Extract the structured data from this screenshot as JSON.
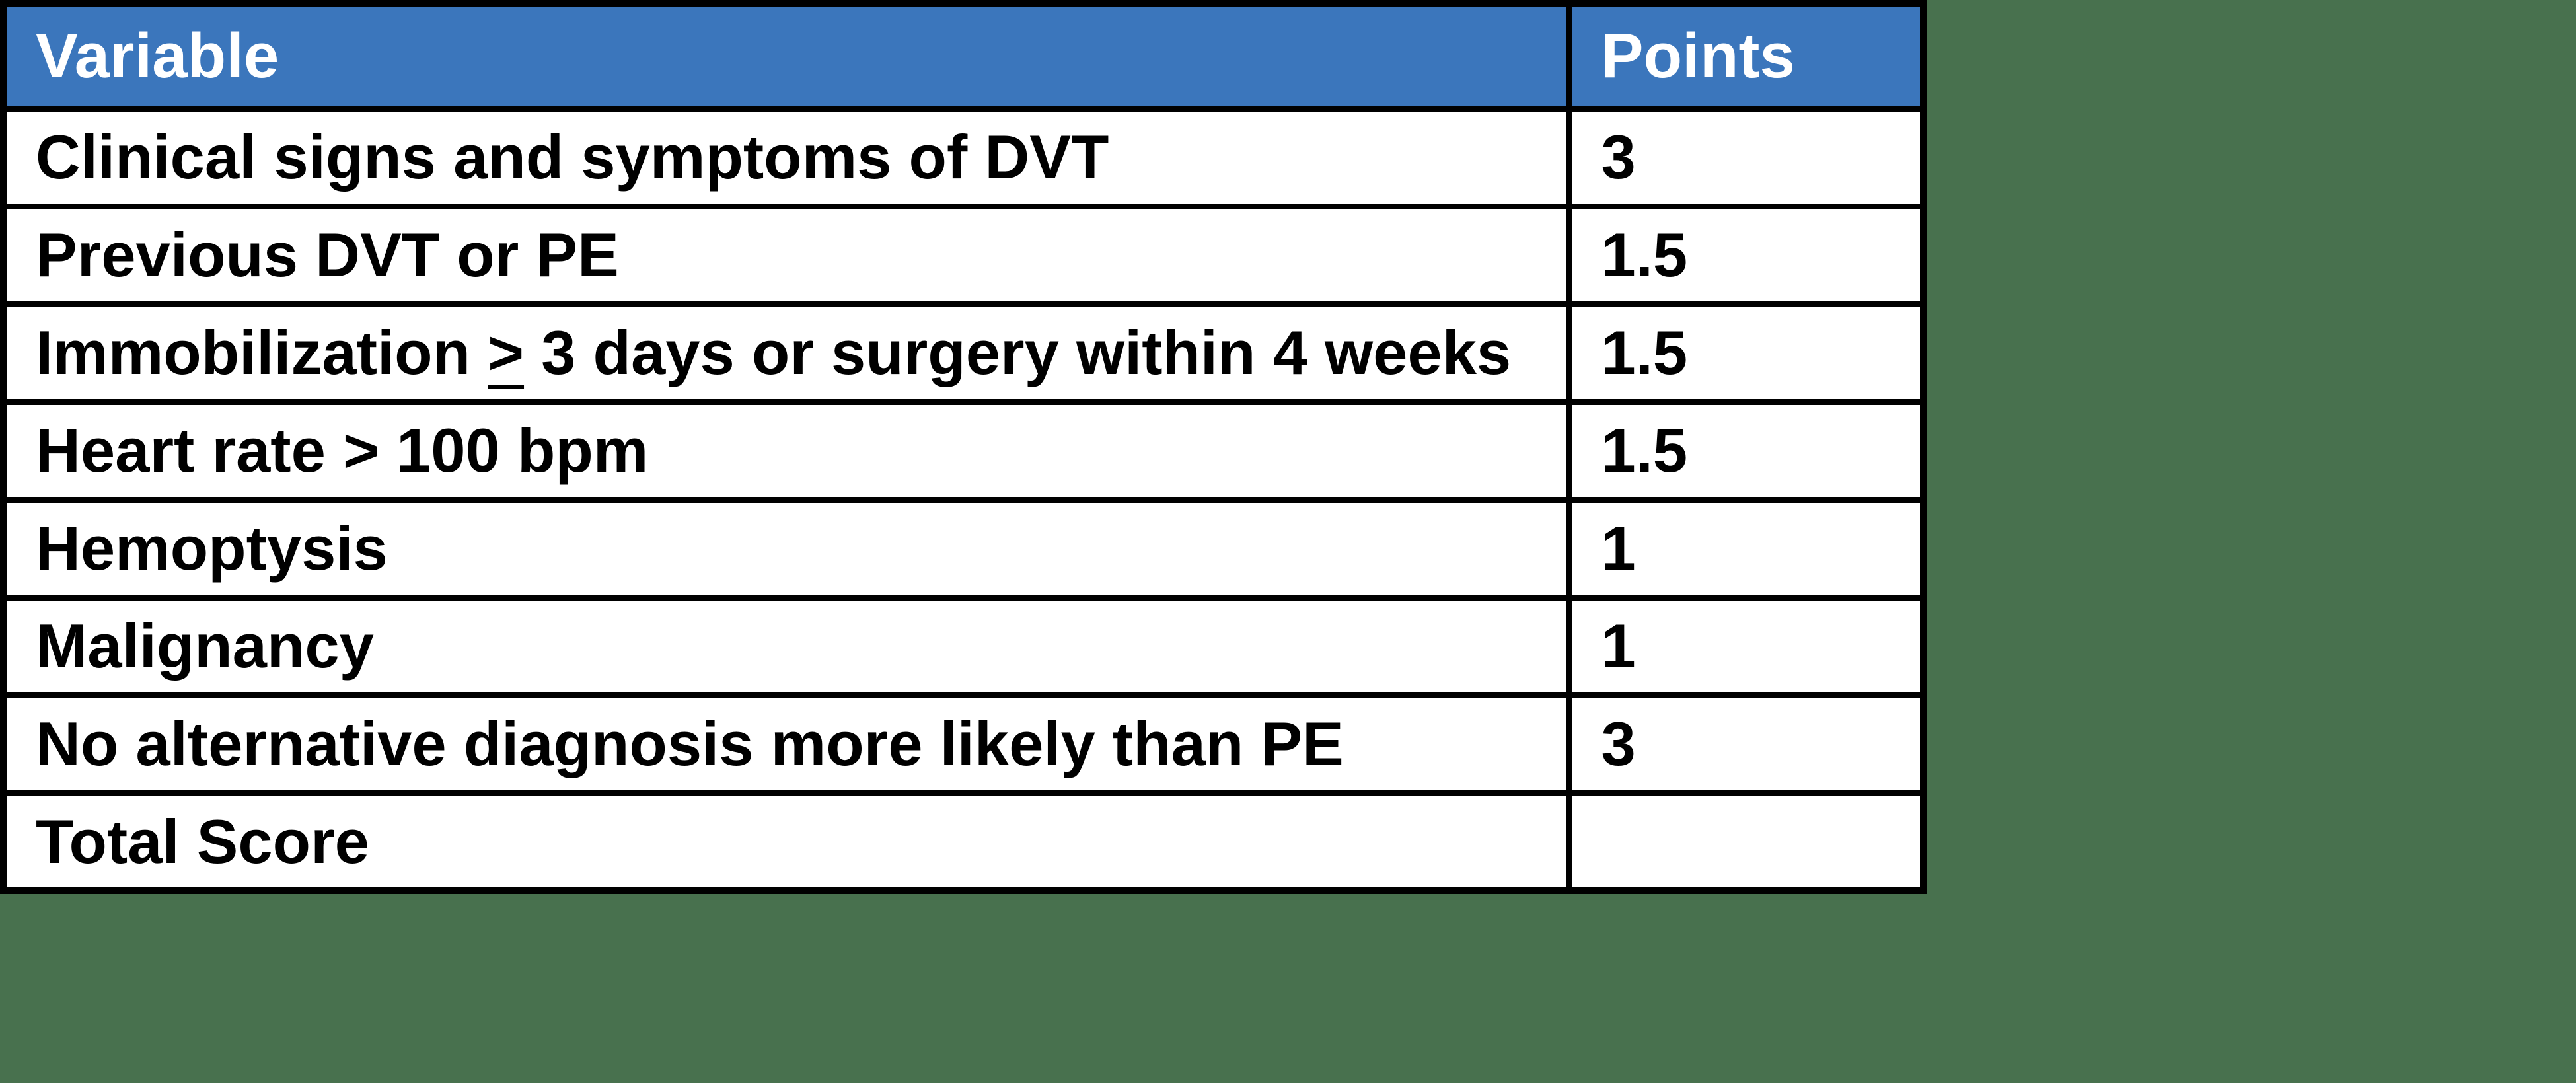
{
  "page": {
    "background_color": "#48714E"
  },
  "colors": {
    "header_bg": "#3B76BC",
    "header_text": "#FFFFFF",
    "body_text": "#000000",
    "row_bg": "#FFFFFF",
    "border": "#000000"
  },
  "table": {
    "name": "Wells criteria points table",
    "columns": [
      {
        "key": "variable",
        "label": "Variable"
      },
      {
        "key": "points",
        "label": "Points"
      }
    ],
    "rows": [
      {
        "variable": "Clinical signs and symptoms of DVT",
        "points": "3"
      },
      {
        "variable": "Previous DVT or PE",
        "points": "1.5"
      },
      {
        "variable": "Immobilization ≥ 3 days or surgery within 4 weeks",
        "points": "1.5"
      },
      {
        "variable": "Heart rate > 100 bpm",
        "points": "1.5"
      },
      {
        "variable": "Hemoptysis",
        "points": "1"
      },
      {
        "variable": "Malignancy",
        "points": "1"
      },
      {
        "variable": "No alternative diagnosis more likely than PE",
        "points": "3"
      },
      {
        "variable": "Total Score",
        "points": ""
      }
    ]
  }
}
